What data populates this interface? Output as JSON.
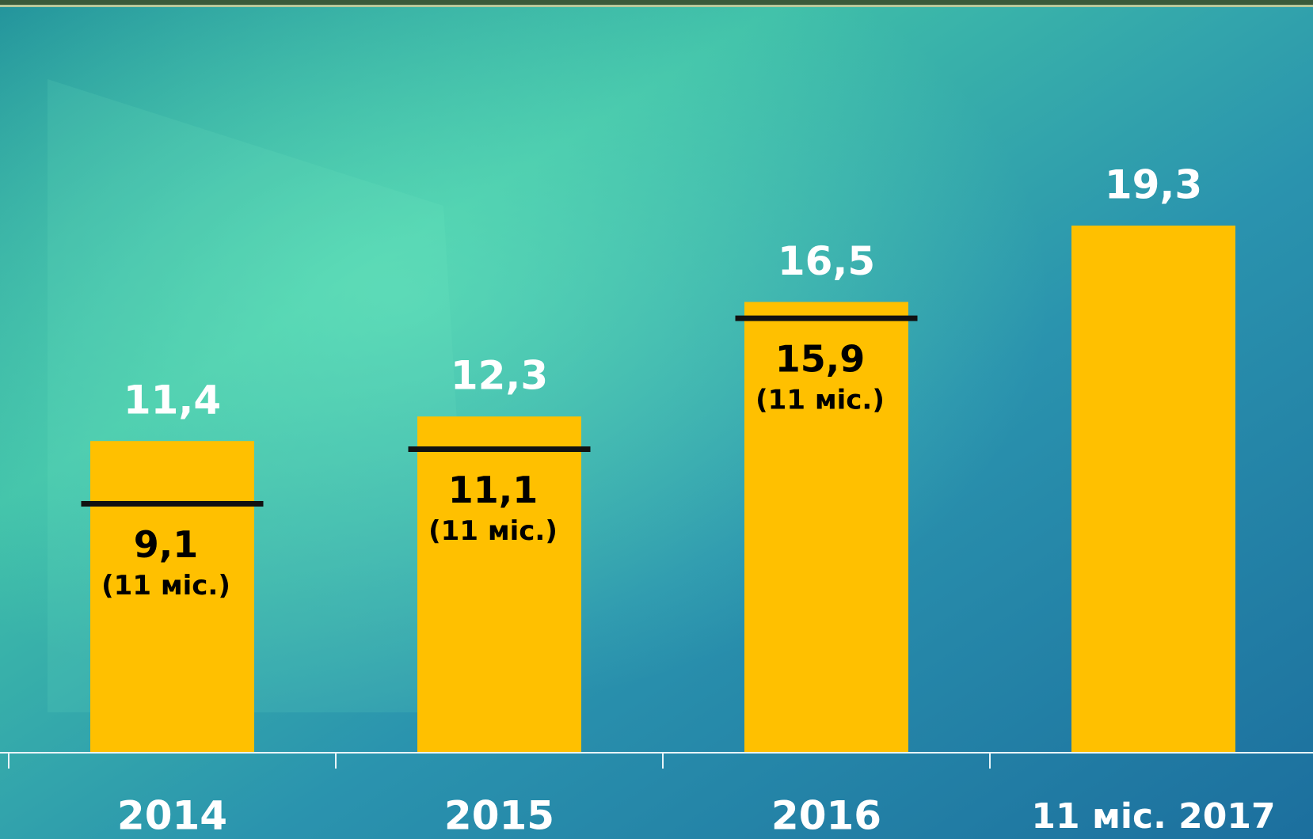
{
  "chart_data": {
    "type": "bar",
    "categories": [
      "2014",
      "2015",
      "2016",
      "11 міс. 2017"
    ],
    "series": [
      {
        "values": [
          11.4,
          12.3,
          16.5,
          19.3
        ],
        "value_labels": [
          "11,4",
          "12,3",
          "16,5",
          "19,3"
        ],
        "color": "#ffc000"
      },
      {
        "values": [
          9.1,
          11.1,
          15.9,
          null
        ],
        "value_labels": [
          "9,1",
          "11,1",
          "15,9",
          null
        ],
        "color": "#111111"
      }
    ],
    "marker_note": "(11 міс.)"
  }
}
